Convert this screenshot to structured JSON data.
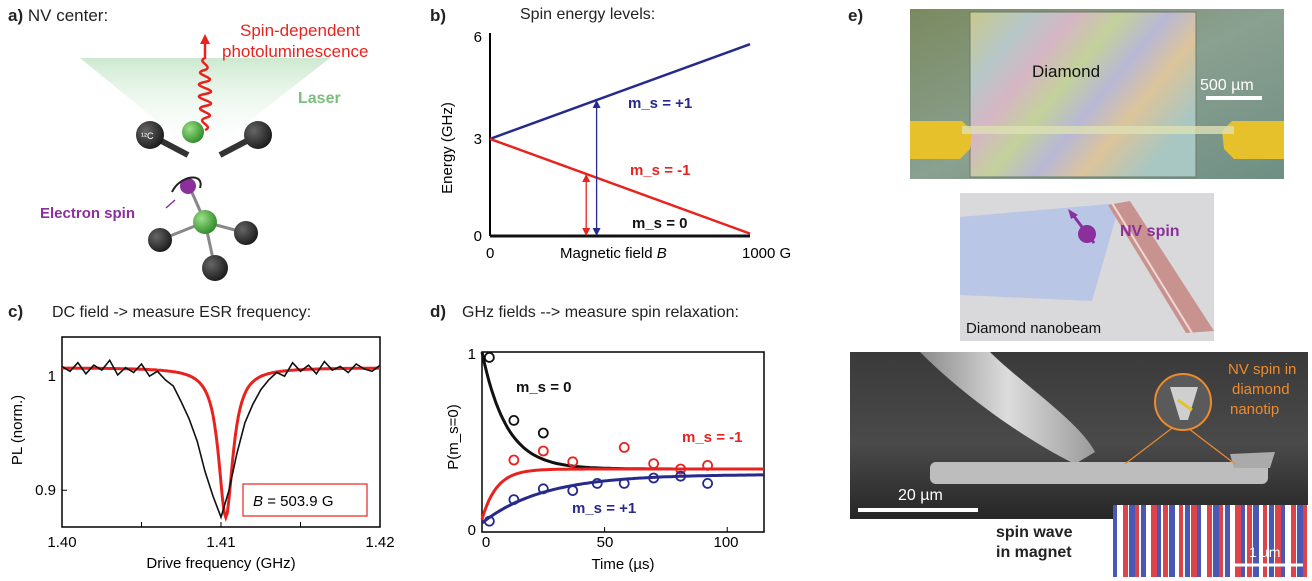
{
  "colors": {
    "red": "#e8231f",
    "blue": "#272a8c",
    "black": "#111111",
    "green": "#3ea63a",
    "purple": "#8b2f9c",
    "orange": "#f08a2a",
    "gold": "#e6c12b"
  },
  "panel_a": {
    "label": "a)",
    "title": "NV center:",
    "photo_label_line1": "Spin-dependent",
    "photo_label_line2": "photoluminescence",
    "laser_label": "Laser",
    "carbon_label": "¹²C",
    "electron_label": "Electron spin"
  },
  "panel_b": {
    "label": "b)",
    "title": "Spin energy levels:",
    "ylabel": "Energy (GHz)",
    "xlabel": "Magnetic field",
    "xlabel_var": "B",
    "ticks_y": [
      "6",
      "3",
      "0"
    ],
    "tick_x0": "0",
    "tick_x1": "1000 G",
    "level_plus1": "m_s = +1",
    "level_minus1": "m_s = -1",
    "level_zero": "m_s = 0"
  },
  "panel_c": {
    "label": "c)",
    "title": "DC field -> measure ESR frequency:",
    "ylabel": "PL (norm.)",
    "xlabel": "Drive frequency (GHz)",
    "xticks": [
      "1.40",
      "1.41",
      "1.42"
    ],
    "yticks": [
      "1",
      "0.9"
    ],
    "box_var": "B",
    "box_value": "= 503.9 G"
  },
  "panel_d": {
    "label": "d)",
    "title": "GHz fields --> measure spin relaxation:",
    "ylabel": "P(m_s=0)",
    "xlabel": "Time (µs)",
    "xticks": [
      "0",
      "50",
      "100"
    ],
    "yticks": [
      "1",
      "0"
    ],
    "lbl_zero": "m_s = 0",
    "lbl_minus1": "m_s = -1",
    "lbl_plus1": "m_s = +1"
  },
  "panel_e": {
    "label": "e)",
    "diamond_label": "Diamond",
    "scale1": "500 µm",
    "nv_spin": "NV spin",
    "nanobeam": "Diamond nanobeam",
    "nanotip_l1": "NV spin in",
    "nanotip_l2": "diamond",
    "nanotip_l3": "nanotip",
    "scale2": "20 µm",
    "spinwave_l1": "spin wave",
    "spinwave_l2": "in magnet",
    "scale3": "1 µm"
  },
  "chart_data": [
    {
      "type": "line",
      "title": "Spin energy levels:",
      "xlabel": "Magnetic field B",
      "ylabel": "Energy (GHz)",
      "xlim": [
        0,
        1000
      ],
      "ylim": [
        0,
        6
      ],
      "series": [
        {
          "name": "m_s = +1",
          "x": [
            0,
            1000
          ],
          "y": [
            2.87,
            5.67
          ]
        },
        {
          "name": "m_s = -1",
          "x": [
            0,
            1000
          ],
          "y": [
            2.87,
            0.07
          ]
        },
        {
          "name": "m_s = 0",
          "x": [
            0,
            1000
          ],
          "y": [
            0,
            0
          ]
        }
      ]
    },
    {
      "type": "line",
      "title": "DC field -> measure ESR frequency:",
      "xlabel": "Drive frequency (GHz)",
      "ylabel": "PL (norm.)",
      "xlim": [
        1.4,
        1.42
      ],
      "ylim": [
        0.87,
        1.025
      ],
      "annotation": "B = 503.9 G",
      "series": [
        {
          "name": "data",
          "x": [
            1.4,
            1.4005,
            1.401,
            1.4015,
            1.402,
            1.4025,
            1.403,
            1.4035,
            1.404,
            1.4045,
            1.405,
            1.4055,
            1.406,
            1.4065,
            1.407,
            1.4075,
            1.408,
            1.4085,
            1.409,
            1.4095,
            1.41,
            1.4105,
            1.411,
            1.4115,
            1.412,
            1.4125,
            1.413,
            1.4135,
            1.414,
            1.4145,
            1.415,
            1.4155,
            1.416,
            1.4165,
            1.417,
            1.4175,
            1.418,
            1.4185,
            1.419,
            1.4195,
            1.42
          ],
          "y": [
            1.001,
            0.997,
            1.004,
            0.995,
            1.002,
            0.998,
            1.006,
            0.994,
            1.0,
            0.996,
            1.003,
            0.993,
            0.997,
            0.99,
            0.985,
            0.972,
            0.958,
            0.94,
            0.915,
            0.895,
            0.878,
            0.9,
            0.93,
            0.955,
            0.97,
            0.982,
            0.99,
            0.996,
            0.993,
            1.004,
            0.997,
            1.002,
            0.995,
            1.005,
            0.998,
            1.001,
            0.996,
            1.003,
            0.999,
            0.997,
            1.002
          ]
        },
        {
          "name": "fit",
          "center": 1.4103,
          "depth": 0.122,
          "width": 0.0011,
          "baseline": 1.0
        }
      ]
    },
    {
      "type": "scatter",
      "title": "GHz fields --> measure spin relaxation:",
      "xlabel": "Time (µs)",
      "ylabel": "P(m_s=0)",
      "xlim": [
        0,
        115
      ],
      "ylim": [
        0,
        1
      ],
      "series": [
        {
          "name": "m_s = 0",
          "x": [
            3,
            13,
            25
          ],
          "y": [
            0.97,
            0.62,
            0.55
          ]
        },
        {
          "name": "m_s = -1",
          "x": [
            13,
            25,
            37,
            58,
            70,
            81,
            92
          ],
          "y": [
            0.4,
            0.45,
            0.39,
            0.47,
            0.38,
            0.35,
            0.37
          ]
        },
        {
          "name": "m_s = +1",
          "x": [
            3,
            13,
            25,
            37,
            47,
            58,
            70,
            81,
            92
          ],
          "y": [
            0.06,
            0.18,
            0.24,
            0.23,
            0.27,
            0.27,
            0.3,
            0.31,
            0.27
          ]
        }
      ]
    }
  ]
}
